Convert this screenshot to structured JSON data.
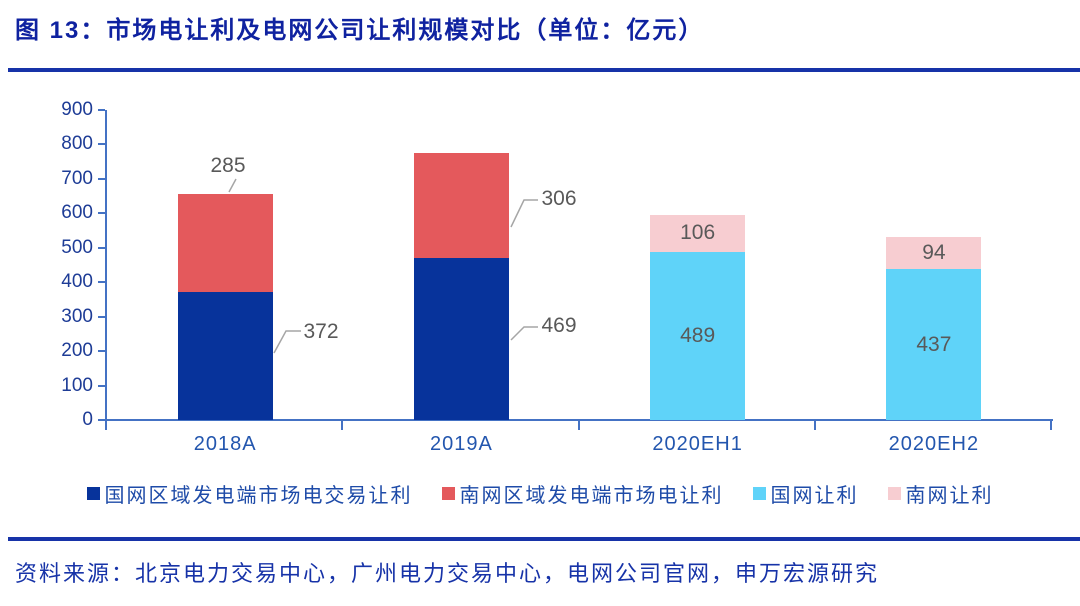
{
  "title": "图 13：市场电让利及电网公司让利规模对比（单位：亿元）",
  "source": "资料来源：北京电力交易中心，广州电力交易中心，电网公司官网，申万宏源研究",
  "colors": {
    "title_navy": "#0f22a0",
    "divider_navy": "#1733a8",
    "axis_blue": "#4472c4",
    "ytick_label_blue": "#1e3c96",
    "xcat_label_blue": "#2356ae",
    "legend_text_blue": "#1e4ba8",
    "data_label_gray": "#595959",
    "leader_line_gray": "#a6a6a6"
  },
  "chart_data": {
    "type": "bar",
    "stacked": true,
    "title": "市场电让利及电网公司让利规模对比",
    "unit": "亿元",
    "categories": [
      "2018A",
      "2019A",
      "2020EH1",
      "2020EH2"
    ],
    "series": [
      {
        "name": "国网区域发电端市场电交易让利",
        "color": "#07339b",
        "values": [
          372,
          469,
          null,
          null
        ]
      },
      {
        "name": "南网区域发电端市场电让利",
        "color": "#e4595c",
        "values": [
          285,
          306,
          null,
          null
        ]
      },
      {
        "name": "国网让利",
        "color": "#5fd3f9",
        "values": [
          null,
          null,
          489,
          437
        ]
      },
      {
        "name": "南网让利",
        "color": "#f7cdd1",
        "values": [
          null,
          null,
          106,
          94
        ]
      }
    ],
    "ylim": [
      0,
      900
    ],
    "ytick_step": 100,
    "grid": false,
    "legend_position": "bottom",
    "xlabel": "",
    "ylabel": ""
  }
}
